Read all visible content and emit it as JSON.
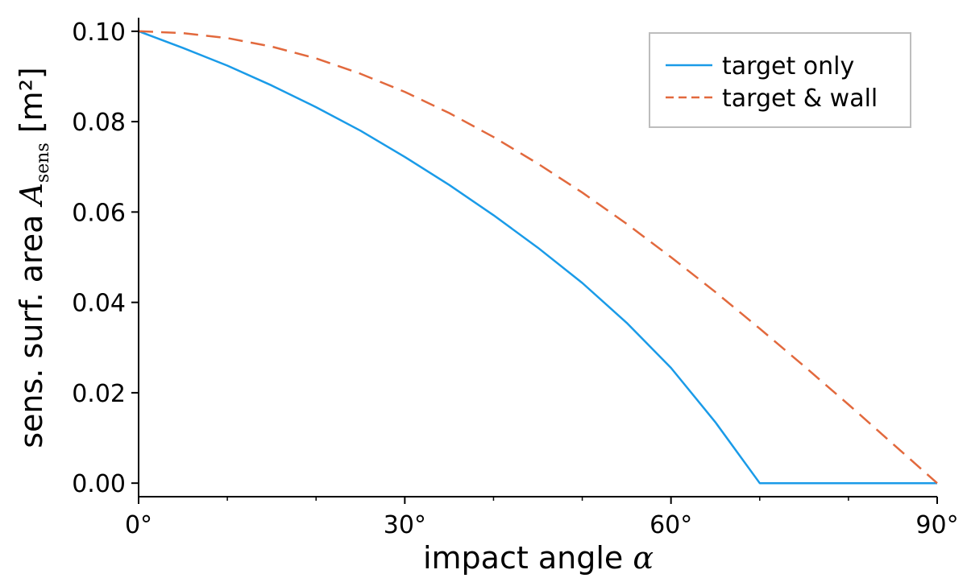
{
  "chart_data": {
    "type": "line",
    "x_unit": "degrees",
    "xlabel": {
      "text": "impact angle ",
      "symbol": "α"
    },
    "ylabel": {
      "text": "sens. surf. area ",
      "symbol": "A",
      "subscript": "sens",
      "unit": " [m²]"
    },
    "xlim": [
      0,
      90
    ],
    "ylim": [
      -0.003,
      0.103
    ],
    "x_ticks": [
      0,
      30,
      60,
      90
    ],
    "x_tick_labels": [
      "0°",
      "30°",
      "60°",
      "90°"
    ],
    "x_minor_ticks": [
      10,
      20,
      40,
      50,
      70,
      80
    ],
    "y_ticks": [
      0.0,
      0.02,
      0.04,
      0.06,
      0.08,
      0.1
    ],
    "y_tick_labels": [
      "0.00",
      "0.02",
      "0.04",
      "0.06",
      "0.08",
      "0.10"
    ],
    "grid": false,
    "legend_position": "top-right",
    "series": [
      {
        "name": "target only",
        "color": "#1a9be8",
        "dash": "solid",
        "x": [
          0,
          5,
          10,
          15,
          20,
          25,
          30,
          35,
          40,
          45,
          50,
          55,
          60,
          65,
          70,
          75,
          80,
          85,
          90
        ],
        "y": [
          0.1,
          0.0963,
          0.0924,
          0.088,
          0.0832,
          0.078,
          0.0722,
          0.066,
          0.0593,
          0.0521,
          0.0443,
          0.0355,
          0.0255,
          0.0135,
          0.0,
          0.0,
          0.0,
          0.0,
          0.0
        ]
      },
      {
        "name": "target & wall",
        "color": "#e2693d",
        "dash": "dashed",
        "x": [
          0,
          5,
          10,
          15,
          20,
          25,
          30,
          35,
          40,
          45,
          50,
          55,
          60,
          65,
          70,
          75,
          80,
          85,
          90
        ],
        "y": [
          0.1,
          0.0996,
          0.0985,
          0.0966,
          0.094,
          0.0906,
          0.0866,
          0.0819,
          0.0766,
          0.0707,
          0.0643,
          0.0574,
          0.05,
          0.0423,
          0.0342,
          0.0259,
          0.0174,
          0.0087,
          0.0
        ]
      }
    ]
  }
}
